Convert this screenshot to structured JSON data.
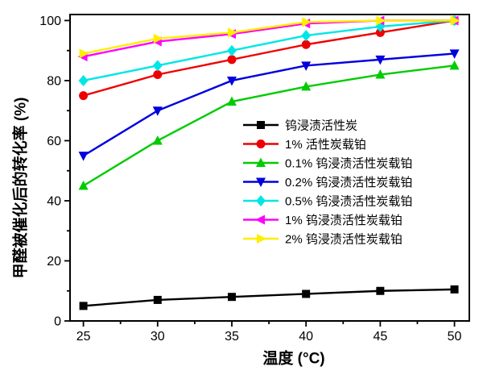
{
  "background": "#ffffff",
  "chart_data": {
    "type": "line",
    "title": "",
    "xlabel": "温度 (°C)",
    "ylabel": "甲醛被催化后的转化率 (%)",
    "x": [
      25,
      30,
      35,
      40,
      45,
      50
    ],
    "x_ticks": [
      25,
      30,
      35,
      40,
      45,
      50
    ],
    "y_ticks": [
      0,
      20,
      40,
      60,
      80,
      100
    ],
    "xlim": [
      24.1,
      51.0
    ],
    "ylim": [
      0,
      102
    ],
    "grid": false,
    "legend_position": "center-right",
    "axis_color": "#000000",
    "series": [
      {
        "name": "钨浸渍活性炭",
        "color": "#000000",
        "marker": "square",
        "values": [
          5,
          7,
          8,
          9,
          10,
          10.5
        ]
      },
      {
        "name": "1% 活性炭载铂",
        "color": "#ee0000",
        "marker": "circle",
        "values": [
          75,
          82,
          87,
          92,
          96,
          100
        ]
      },
      {
        "name": "0.1% 钨浸渍活性炭载铂",
        "color": "#00cc00",
        "marker": "triangle-up",
        "values": [
          45,
          60,
          73,
          78,
          82,
          85
        ]
      },
      {
        "name": "0.2% 钨浸渍活性炭载铂",
        "color": "#0000dd",
        "marker": "triangle-down",
        "values": [
          55,
          70,
          80,
          85,
          87,
          89
        ]
      },
      {
        "name": "0.5% 钨浸渍活性炭载铂",
        "color": "#00e6e6",
        "marker": "diamond",
        "values": [
          80,
          85,
          90,
          95,
          98,
          100
        ]
      },
      {
        "name": "1% 钨浸渍活性炭载铂",
        "color": "#ff00ff",
        "marker": "triangle-left",
        "values": [
          88,
          93,
          95.5,
          99,
          100,
          100
        ]
      },
      {
        "name": "2% 钨浸渍活性炭载铂",
        "color": "#ffee00",
        "marker": "triangle-right",
        "values": [
          89,
          94,
          96,
          99.5,
          100,
          100
        ]
      }
    ]
  }
}
